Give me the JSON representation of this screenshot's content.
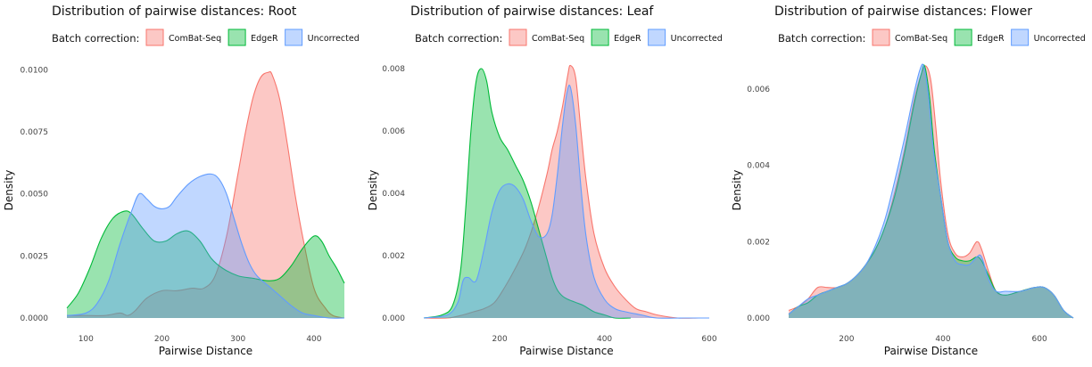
{
  "legend": {
    "title": "Batch correction:",
    "entries": [
      {
        "name": "ComBat-Seq",
        "fill": "#F8766D",
        "stroke": "#F8766D"
      },
      {
        "name": "EdgeR",
        "fill": "#00BA38",
        "stroke": "#00BA38"
      },
      {
        "name": "Uncorrected",
        "fill": "#619CFF",
        "stroke": "#619CFF"
      }
    ]
  },
  "chart_data": [
    {
      "type": "area",
      "title": "Distribution of pairwise distances: Root",
      "xlabel": "Pairwise Distance",
      "ylabel": "Density",
      "xlim": [
        75,
        440
      ],
      "ylim": [
        0,
        0.0103
      ],
      "xticks": [
        100,
        200,
        300,
        400
      ],
      "yticks": [
        0.0,
        0.0025,
        0.005,
        0.0075,
        0.01
      ],
      "ytick_labels": [
        "0.0000",
        "0.0025",
        "0.0050",
        "0.0075",
        "0.0100"
      ],
      "grid": false,
      "legend_position": "top",
      "series": [
        {
          "name": "ComBat-Seq",
          "x": [
            75,
            100,
            125,
            145,
            155,
            165,
            180,
            200,
            220,
            240,
            255,
            270,
            285,
            300,
            310,
            320,
            330,
            340,
            345,
            355,
            365,
            375,
            385,
            400,
            415,
            425,
            440
          ],
          "y": [
            0.0001,
            0.0001,
            0.0001,
            0.0002,
            0.0001,
            0.0003,
            0.0008,
            0.0011,
            0.0011,
            0.0012,
            0.0012,
            0.0017,
            0.0033,
            0.0058,
            0.0075,
            0.0089,
            0.0097,
            0.0099,
            0.0098,
            0.0088,
            0.007,
            0.005,
            0.0033,
            0.0012,
            0.0004,
            0.0001,
            0.0
          ]
        },
        {
          "name": "EdgeR",
          "x": [
            75,
            90,
            105,
            120,
            135,
            150,
            160,
            175,
            190,
            205,
            220,
            235,
            250,
            265,
            280,
            300,
            320,
            340,
            355,
            370,
            385,
            400,
            410,
            420,
            430,
            440
          ],
          "y": [
            0.0004,
            0.001,
            0.002,
            0.0032,
            0.004,
            0.0043,
            0.0042,
            0.0036,
            0.0031,
            0.0031,
            0.0034,
            0.0035,
            0.0031,
            0.0024,
            0.002,
            0.0017,
            0.0016,
            0.0015,
            0.0016,
            0.0021,
            0.0028,
            0.0033,
            0.0031,
            0.0025,
            0.002,
            0.0014
          ]
        },
        {
          "name": "Uncorrected",
          "x": [
            75,
            100,
            115,
            130,
            145,
            160,
            170,
            180,
            190,
            200,
            210,
            220,
            235,
            250,
            265,
            275,
            285,
            295,
            305,
            315,
            325,
            340,
            355,
            370,
            385,
            400,
            420,
            440
          ],
          "y": [
            0.0001,
            0.0002,
            0.0006,
            0.0015,
            0.003,
            0.0043,
            0.005,
            0.0048,
            0.0045,
            0.0044,
            0.0045,
            0.0049,
            0.0054,
            0.0057,
            0.0058,
            0.0056,
            0.005,
            0.004,
            0.003,
            0.0022,
            0.0017,
            0.0013,
            0.0009,
            0.0005,
            0.0002,
            0.0001,
            0.0,
            0.0
          ]
        }
      ]
    },
    {
      "type": "area",
      "title": "Distribution of pairwise distances: Leaf",
      "xlabel": "Pairwise Distance",
      "ylabel": "Density",
      "xlim": [
        55,
        600
      ],
      "ylim": [
        0,
        0.0082
      ],
      "xticks": [
        200,
        400,
        600
      ],
      "yticks": [
        0.0,
        0.002,
        0.004,
        0.006,
        0.008
      ],
      "ytick_labels": [
        "0.000",
        "0.002",
        "0.004",
        "0.006",
        "0.008"
      ],
      "grid": false,
      "legend_position": "top",
      "series": [
        {
          "name": "ComBat-Seq",
          "x": [
            55,
            100,
            130,
            150,
            170,
            190,
            210,
            230,
            250,
            270,
            290,
            300,
            310,
            320,
            330,
            335,
            345,
            355,
            365,
            380,
            400,
            420,
            440,
            460,
            480,
            500,
            540,
            580,
            600
          ],
          "y": [
            0.0,
            0.0,
            0.0001,
            0.0002,
            0.0003,
            0.0005,
            0.001,
            0.0016,
            0.0023,
            0.0033,
            0.0046,
            0.0054,
            0.006,
            0.0068,
            0.0078,
            0.0081,
            0.0077,
            0.006,
            0.0044,
            0.0027,
            0.0016,
            0.001,
            0.0006,
            0.0003,
            0.0002,
            0.0001,
            0.0,
            0.0,
            0.0
          ]
        },
        {
          "name": "EdgeR",
          "x": [
            55,
            90,
            110,
            125,
            135,
            145,
            155,
            165,
            175,
            185,
            200,
            215,
            230,
            245,
            260,
            275,
            290,
            300,
            310,
            320,
            330,
            345,
            360,
            380,
            400,
            420,
            450
          ],
          "y": [
            0.0,
            0.0001,
            0.0004,
            0.0015,
            0.0035,
            0.006,
            0.0076,
            0.008,
            0.0076,
            0.0066,
            0.0058,
            0.0054,
            0.0049,
            0.0044,
            0.0037,
            0.0028,
            0.0019,
            0.0013,
            0.0009,
            0.0007,
            0.0006,
            0.0005,
            0.0004,
            0.0002,
            0.0001,
            0.0,
            0.0
          ]
        },
        {
          "name": "Uncorrected",
          "x": [
            55,
            100,
            120,
            130,
            140,
            155,
            170,
            185,
            200,
            215,
            230,
            245,
            260,
            275,
            290,
            300,
            310,
            320,
            328,
            335,
            345,
            355,
            365,
            380,
            400,
            420,
            440,
            470,
            500,
            550,
            600
          ],
          "y": [
            0.0,
            0.0001,
            0.0005,
            0.0012,
            0.0013,
            0.0012,
            0.0022,
            0.0034,
            0.0041,
            0.0043,
            0.0042,
            0.0038,
            0.0031,
            0.0026,
            0.0027,
            0.0033,
            0.0046,
            0.0062,
            0.0072,
            0.0074,
            0.0062,
            0.0042,
            0.0026,
            0.0013,
            0.0006,
            0.0003,
            0.0002,
            0.0001,
            0.0,
            0.0,
            0.0
          ]
        }
      ]
    },
    {
      "type": "area",
      "title": "Distribution of pairwise distances: Flower",
      "xlabel": "Pairwise Distance",
      "ylabel": "Density",
      "xlim": [
        80,
        670
      ],
      "ylim": [
        0,
        0.0067
      ],
      "xticks": [
        200,
        400,
        600
      ],
      "yticks": [
        0.0,
        0.002,
        0.004,
        0.006
      ],
      "ytick_labels": [
        "0.000",
        "0.002",
        "0.004",
        "0.006"
      ],
      "grid": false,
      "legend_position": "top",
      "series": [
        {
          "name": "ComBat-Seq",
          "x": [
            80,
            100,
            120,
            140,
            160,
            180,
            200,
            220,
            240,
            260,
            280,
            300,
            320,
            340,
            355,
            365,
            375,
            385,
            395,
            410,
            425,
            440,
            455,
            470,
            480,
            495,
            510,
            530,
            560,
            590,
            610,
            630,
            650,
            670
          ],
          "y": [
            0.0002,
            0.0003,
            0.0005,
            0.0008,
            0.0008,
            0.0008,
            0.0009,
            0.0011,
            0.0014,
            0.0018,
            0.0024,
            0.0033,
            0.0044,
            0.0057,
            0.0064,
            0.0066,
            0.0062,
            0.005,
            0.0036,
            0.0022,
            0.0017,
            0.0016,
            0.0017,
            0.002,
            0.0018,
            0.0012,
            0.0007,
            0.0006,
            0.0007,
            0.0008,
            0.0008,
            0.0006,
            0.0002,
            0.0
          ]
        },
        {
          "name": "EdgeR",
          "x": [
            80,
            100,
            120,
            140,
            160,
            180,
            200,
            220,
            240,
            260,
            280,
            300,
            320,
            340,
            355,
            362,
            372,
            382,
            395,
            410,
            425,
            440,
            455,
            470,
            480,
            495,
            510,
            530,
            560,
            590,
            610,
            630,
            650,
            670
          ],
          "y": [
            0.0001,
            0.0003,
            0.0004,
            0.0006,
            0.0007,
            0.0008,
            0.0009,
            0.0011,
            0.0014,
            0.0018,
            0.0024,
            0.0032,
            0.0043,
            0.0056,
            0.0064,
            0.0066,
            0.0058,
            0.0044,
            0.0032,
            0.002,
            0.0016,
            0.0015,
            0.0015,
            0.0016,
            0.0015,
            0.0011,
            0.0007,
            0.0006,
            0.0007,
            0.0008,
            0.0008,
            0.0006,
            0.0002,
            0.0
          ]
        },
        {
          "name": "Uncorrected",
          "x": [
            80,
            100,
            120,
            140,
            160,
            180,
            200,
            220,
            240,
            260,
            280,
            300,
            320,
            340,
            352,
            360,
            370,
            380,
            395,
            410,
            425,
            440,
            455,
            470,
            480,
            495,
            510,
            530,
            560,
            590,
            610,
            630,
            650,
            670
          ],
          "y": [
            0.0001,
            0.0003,
            0.0005,
            0.0006,
            0.0007,
            0.0008,
            0.0009,
            0.0011,
            0.0014,
            0.0019,
            0.0026,
            0.0036,
            0.0047,
            0.0059,
            0.0065,
            0.0066,
            0.0058,
            0.0044,
            0.0032,
            0.002,
            0.0015,
            0.0014,
            0.0014,
            0.0016,
            0.0016,
            0.001,
            0.0007,
            0.0007,
            0.0007,
            0.0008,
            0.0008,
            0.0006,
            0.0002,
            0.0
          ]
        }
      ]
    }
  ]
}
